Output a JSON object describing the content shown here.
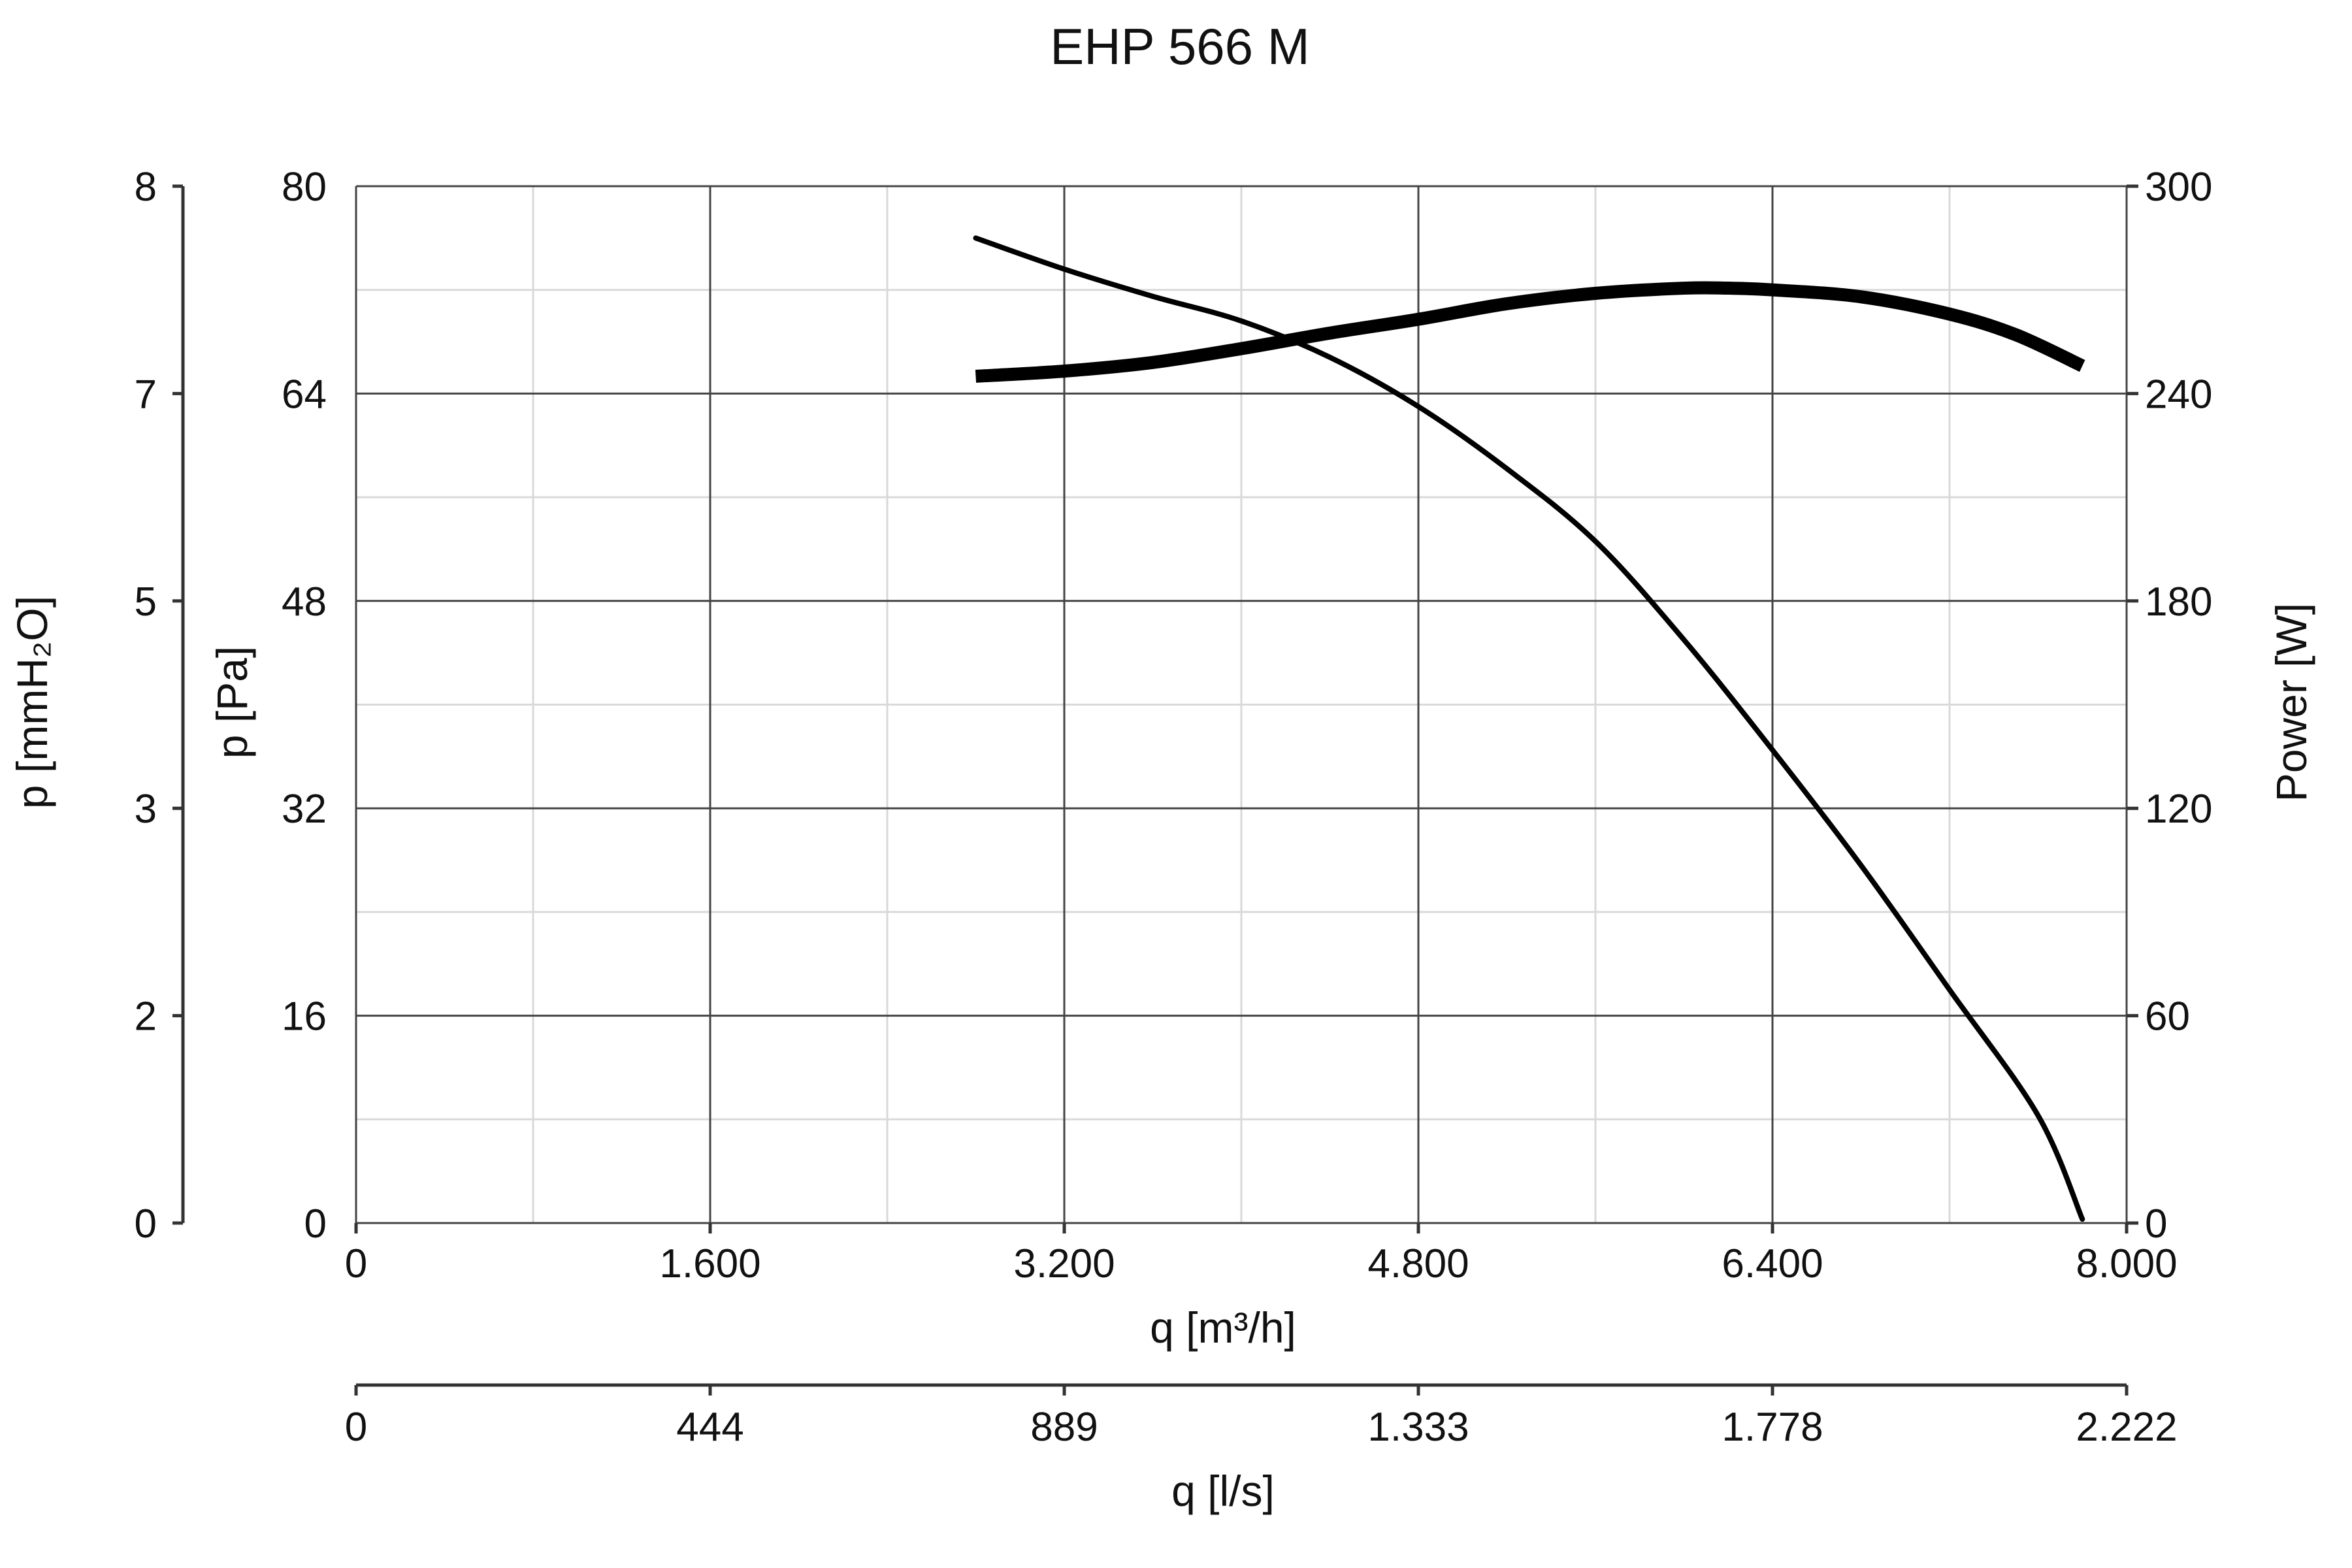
{
  "chart_data": {
    "type": "line",
    "title": "EHP 566 M",
    "x_axis": {
      "label": "q [m³/h]",
      "range": [
        0,
        8000
      ],
      "major_ticks": [
        0,
        1600,
        3200,
        4800,
        6400,
        8000
      ],
      "tick_labels": [
        "0",
        "1.600",
        "3.200",
        "4.800",
        "6.400",
        "8.000"
      ],
      "minor_ticks": [
        800,
        2400,
        4000,
        5600,
        7200
      ]
    },
    "x2_axis": {
      "label": "q [l/s]",
      "range": [
        0,
        2222
      ],
      "tick_labels": [
        "0",
        "444",
        "889",
        "1.333",
        "1.778",
        "2.222"
      ]
    },
    "y_axis": {
      "label": "p [Pa]",
      "range": [
        0,
        80
      ],
      "major_ticks": [
        0,
        16,
        32,
        48,
        64,
        80
      ],
      "tick_labels": [
        "0",
        "16",
        "32",
        "48",
        "64",
        "80"
      ],
      "minor_ticks": [
        8,
        24,
        40,
        56,
        72
      ]
    },
    "y2_axis": {
      "label": "p [mmH₂O]",
      "tick_labels": [
        "0",
        "2",
        "3",
        "5",
        "7",
        "8"
      ]
    },
    "y3_axis": {
      "label": "Power [W]",
      "range": [
        0,
        300
      ],
      "tick_labels": [
        "0",
        "60",
        "120",
        "180",
        "240",
        "300"
      ]
    },
    "grid": true,
    "series": [
      {
        "axis": "pressure",
        "x": [
          2800,
          3200,
          3600,
          4000,
          4400,
          4800,
          5200,
          5600,
          6000,
          6400,
          6800,
          7200,
          7600,
          7800
        ],
        "y": [
          76,
          73.6,
          71.5,
          69.6,
          66.8,
          63,
          58.2,
          52.6,
          45,
          36.5,
          27.6,
          18,
          8.3,
          0.3
        ]
      },
      {
        "axis": "power",
        "x": [
          2800,
          3200,
          3600,
          4000,
          4400,
          4800,
          5200,
          5600,
          6000,
          6200,
          6400,
          6800,
          7200,
          7500,
          7800
        ],
        "y": [
          245,
          246.5,
          249,
          253,
          257.5,
          261.5,
          266,
          269,
          270.5,
          270.5,
          270,
          268,
          263,
          257,
          248
        ]
      }
    ]
  }
}
